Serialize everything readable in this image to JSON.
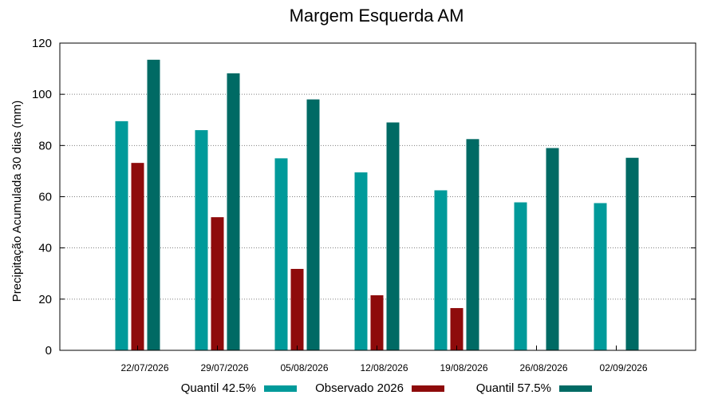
{
  "chart_data": {
    "type": "bar",
    "title": "Margem Esquerda AM",
    "xlabel": "",
    "ylabel": "Precipitação Acumulada 30 dias (mm)",
    "ylim": [
      0,
      120
    ],
    "yticks": [
      0,
      20,
      40,
      60,
      80,
      100,
      120
    ],
    "grid": true,
    "legend_position": "bottom",
    "categories": [
      "22/07/2026",
      "29/07/2026",
      "05/08/2026",
      "12/08/2026",
      "19/08/2026",
      "26/08/2026",
      "02/09/2026"
    ],
    "series": [
      {
        "name": "Quantil 42.5%",
        "color": "#009a9a",
        "values": [
          89.5,
          86,
          75,
          69.5,
          62.5,
          57.8,
          57.5
        ]
      },
      {
        "name": "Observado 2026",
        "color": "#8e0b0b",
        "values": [
          73.2,
          52,
          31.8,
          21.5,
          16.5,
          null,
          null
        ]
      },
      {
        "name": "Quantil 57.5%",
        "color": "#006a64",
        "values": [
          113.5,
          108.2,
          98,
          89,
          82.5,
          79,
          75.2
        ]
      }
    ]
  }
}
